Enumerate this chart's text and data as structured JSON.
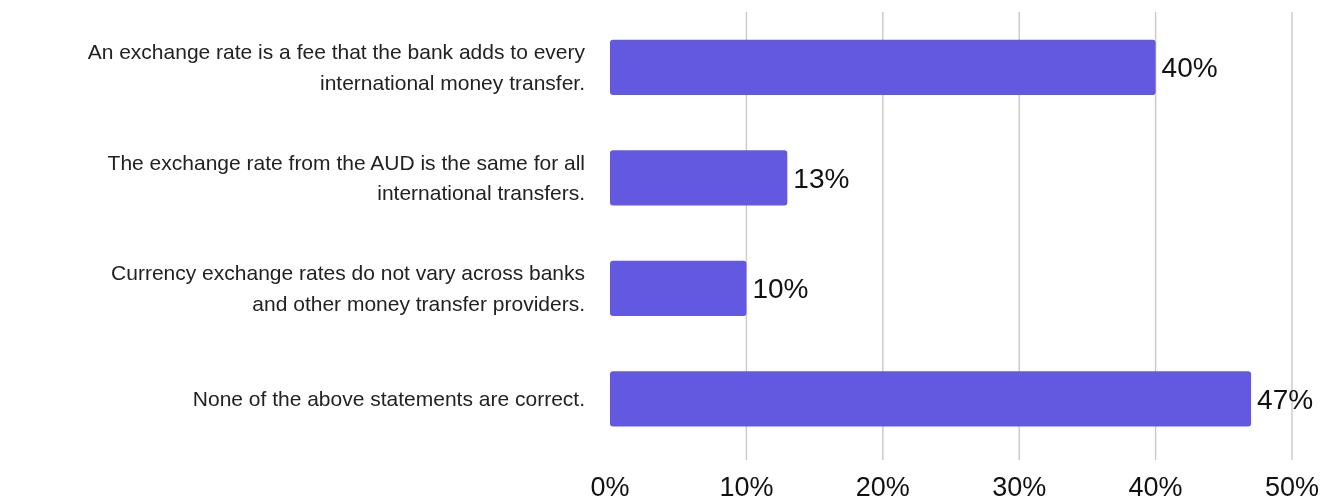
{
  "chart_data": {
    "type": "bar",
    "orientation": "horizontal",
    "categories": [
      "An exchange rate is a fee that the bank adds to every international money transfer.",
      "The exchange rate from the AUD is the same for all international transfers.",
      "Currency exchange rates do not vary across banks and other money transfer providers.",
      "None of the above statements are correct."
    ],
    "values": [
      40,
      13,
      10,
      47
    ],
    "value_labels": [
      "40%",
      "13%",
      "10%",
      "47%"
    ],
    "color": "#6359e0",
    "xlim": [
      0,
      50
    ],
    "xticks": [
      {
        "value": 0,
        "label": "0%"
      },
      {
        "value": 10,
        "label": "10%"
      },
      {
        "value": 20,
        "label": "20%"
      },
      {
        "value": 30,
        "label": "30%"
      },
      {
        "value": 40,
        "label": "40%"
      },
      {
        "value": 50,
        "label": "50%"
      }
    ],
    "grid": "x"
  }
}
